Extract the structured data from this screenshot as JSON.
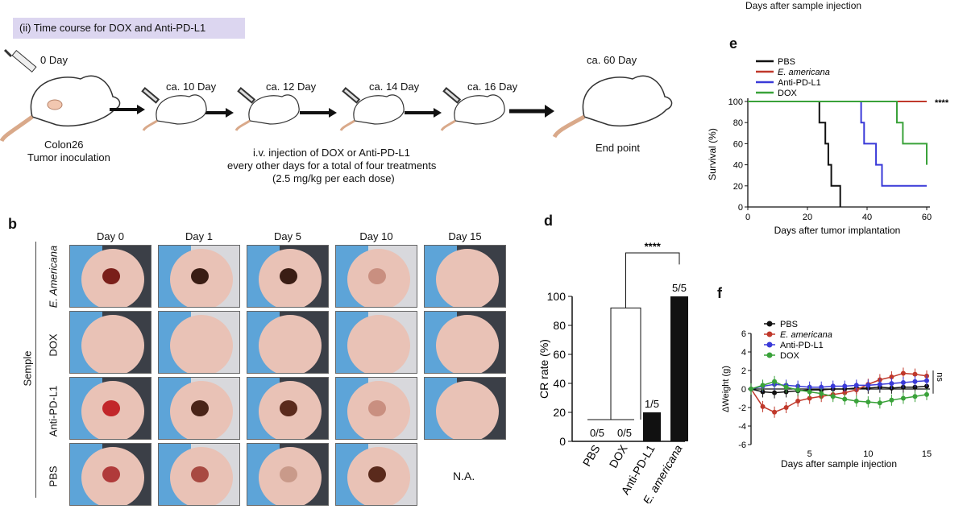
{
  "top_right_caption": "Days after sample injection",
  "timeline": {
    "header": "(ii) Time course for DOX and Anti-PD-L1",
    "day0": "0 Day",
    "inoc_line1": "Colon26",
    "inoc_line2": "Tumor inoculation",
    "day10": "ca. 10 Day",
    "day12": "ca. 12 Day",
    "day14": "ca. 14 Day",
    "day16": "ca. 16 Day",
    "day60": "ca. 60 Day",
    "endpoint": "End point",
    "inj_line1": "i.v. injection of DOX or Anti-PD-L1",
    "inj_line2": "every other days for a total of four treatments",
    "inj_line3": "(2.5 mg/kg per each dose)"
  },
  "panel_b": {
    "label": "b",
    "axis_label": "Semple",
    "columns": [
      "Day 0",
      "Day 1",
      "Day 5",
      "Day 10",
      "Day 15"
    ],
    "rows": [
      "E. Americana",
      "DOX",
      "Anti-PD-L1",
      "PBS"
    ],
    "na_text": "N.A."
  },
  "panel_d": {
    "label": "d",
    "significance": "****",
    "chart_data": {
      "type": "bar",
      "ylabel": "CR rate (%)",
      "ylim": [
        0,
        100
      ],
      "yticks": [
        0,
        20,
        40,
        60,
        80,
        100
      ],
      "categories": [
        "PBS",
        "DOX",
        "Anti-PD-L1",
        "E. americana"
      ],
      "values": [
        0,
        0,
        20,
        100
      ],
      "labels": [
        "0/5",
        "0/5",
        "1/5",
        "5/5"
      ]
    }
  },
  "panel_e": {
    "label": "e",
    "significance": "****",
    "chart_data": {
      "type": "line",
      "xlabel": "Days after tumor implantation",
      "ylabel": "Survival (%)",
      "xlim": [
        0,
        60
      ],
      "ylim": [
        0,
        100
      ],
      "xticks": [
        0,
        20,
        40,
        60
      ],
      "yticks": [
        0,
        20,
        40,
        60,
        80,
        100
      ],
      "series": [
        {
          "name": "PBS",
          "color": "#111111",
          "steps": [
            [
              0,
              100
            ],
            [
              24,
              100
            ],
            [
              24,
              80
            ],
            [
              26,
              80
            ],
            [
              26,
              60
            ],
            [
              27,
              60
            ],
            [
              27,
              40
            ],
            [
              28,
              40
            ],
            [
              28,
              20
            ],
            [
              31,
              20
            ],
            [
              31,
              0
            ]
          ]
        },
        {
          "name": "E. americana",
          "color": "#c0392b",
          "steps": [
            [
              0,
              100
            ],
            [
              60,
              100
            ]
          ]
        },
        {
          "name": "Anti-PD-L1",
          "color": "#3a3ad8",
          "steps": [
            [
              0,
              100
            ],
            [
              38,
              100
            ],
            [
              38,
              80
            ],
            [
              39,
              80
            ],
            [
              39,
              60
            ],
            [
              43,
              60
            ],
            [
              43,
              40
            ],
            [
              45,
              40
            ],
            [
              45,
              20
            ],
            [
              60,
              20
            ]
          ]
        },
        {
          "name": "DOX",
          "color": "#3aa23a",
          "steps": [
            [
              0,
              100
            ],
            [
              50,
              100
            ],
            [
              50,
              80
            ],
            [
              52,
              80
            ],
            [
              52,
              60
            ],
            [
              60,
              60
            ],
            [
              60,
              40
            ]
          ]
        }
      ]
    }
  },
  "panel_f": {
    "label": "f",
    "significance": "ns",
    "chart_data": {
      "type": "line",
      "xlabel": "Days after sample injection",
      "ylabel": "ΔWeight (g)",
      "xlim": [
        0,
        15
      ],
      "ylim": [
        -6,
        6
      ],
      "xticks": [
        5,
        10,
        15
      ],
      "yticks": [
        -6,
        -4,
        -2,
        0,
        2,
        4,
        6
      ],
      "x": [
        0,
        1,
        2,
        3,
        4,
        5,
        6,
        7,
        8,
        9,
        10,
        11,
        12,
        13,
        14,
        15
      ],
      "series": [
        {
          "name": "PBS",
          "color": "#111111",
          "values": [
            0,
            -0.3,
            -0.4,
            -0.3,
            -0.2,
            -0.1,
            -0.1,
            0,
            0,
            0.1,
            0.1,
            0.2,
            0.1,
            0.2,
            0.2,
            0.3
          ]
        },
        {
          "name": "E. americana",
          "color": "#c0392b",
          "values": [
            0,
            -1.9,
            -2.5,
            -2.0,
            -1.3,
            -1.0,
            -0.8,
            -0.6,
            -0.4,
            -0.1,
            0.5,
            1.0,
            1.3,
            1.7,
            1.6,
            1.4
          ]
        },
        {
          "name": "Anti-PD-L1",
          "color": "#3a3ad8",
          "values": [
            0,
            0.3,
            0.5,
            0.4,
            0.3,
            0.2,
            0.2,
            0.3,
            0.3,
            0.4,
            0.4,
            0.5,
            0.6,
            0.7,
            0.8,
            0.9
          ]
        },
        {
          "name": "DOX",
          "color": "#3aa23a",
          "values": [
            0,
            0.4,
            0.8,
            0.2,
            -0.1,
            -0.3,
            -0.5,
            -0.8,
            -1.1,
            -1.3,
            -1.4,
            -1.5,
            -1.2,
            -1.0,
            -0.8,
            -0.6
          ]
        }
      ]
    }
  }
}
